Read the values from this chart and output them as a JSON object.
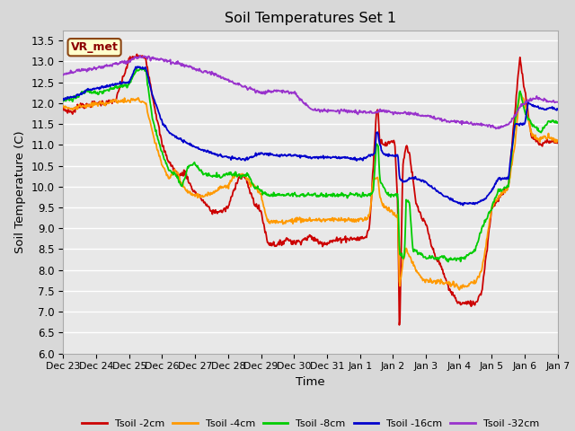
{
  "title": "Soil Temperatures Set 1",
  "xlabel": "Time",
  "ylabel": "Soil Temperature (C)",
  "ylim": [
    6.0,
    13.75
  ],
  "yticks": [
    6.0,
    6.5,
    7.0,
    7.5,
    8.0,
    8.5,
    9.0,
    9.5,
    10.0,
    10.5,
    11.0,
    11.5,
    12.0,
    12.5,
    13.0,
    13.5
  ],
  "bg_color": "#d8d8d8",
  "plot_bg_color": "#e8e8e8",
  "grid_color": "#ffffff",
  "legend_label": "VR_met",
  "colors": {
    "2cm": "#cc0000",
    "4cm": "#ff9900",
    "8cm": "#00cc00",
    "16cm": "#0000cc",
    "32cm": "#9933cc"
  },
  "xtick_labels": [
    "Dec 23",
    "Dec 24",
    "Dec 25",
    "Dec 26",
    "Dec 27",
    "Dec 28",
    "Dec 29",
    "Dec 30",
    "Dec 31",
    "Jan 1",
    "Jan 2",
    "Jan 3",
    "Jan 4",
    "Jan 5",
    "Jan 6",
    "Jan 7"
  ],
  "legend_labels": [
    "Tsoil -2cm",
    "Tsoil -4cm",
    "Tsoil -8cm",
    "Tsoil -16cm",
    "Tsoil -32cm"
  ]
}
